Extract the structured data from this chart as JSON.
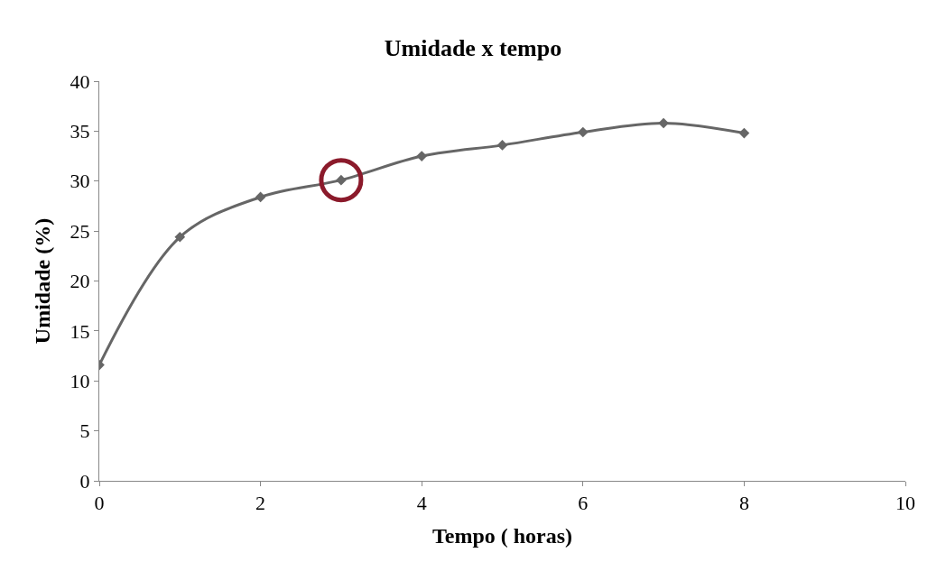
{
  "chart_data": {
    "type": "line",
    "title": "Umidade x tempo",
    "xlabel": "Tempo ( horas)",
    "ylabel": "Umidade (%)",
    "x": [
      0,
      1,
      2,
      3,
      4,
      5,
      6,
      7,
      8
    ],
    "series": [
      {
        "color": "#666666",
        "values": [
          11.6,
          24.4,
          28.4,
          30.1,
          32.5,
          33.6,
          34.9,
          35.8,
          34.8
        ],
        "marker": "diamond"
      },
      {
        "type": "scatter",
        "color": "#8b1a2b",
        "x": [
          3
        ],
        "values": [
          30.1
        ],
        "marker": "circle"
      }
    ],
    "xlim": [
      0,
      10
    ],
    "xticks": [
      0,
      2,
      4,
      6,
      8,
      10
    ],
    "ylim": [
      0,
      40
    ],
    "yticks": [
      0,
      5,
      10,
      15,
      20,
      25,
      30,
      35,
      40
    ]
  }
}
